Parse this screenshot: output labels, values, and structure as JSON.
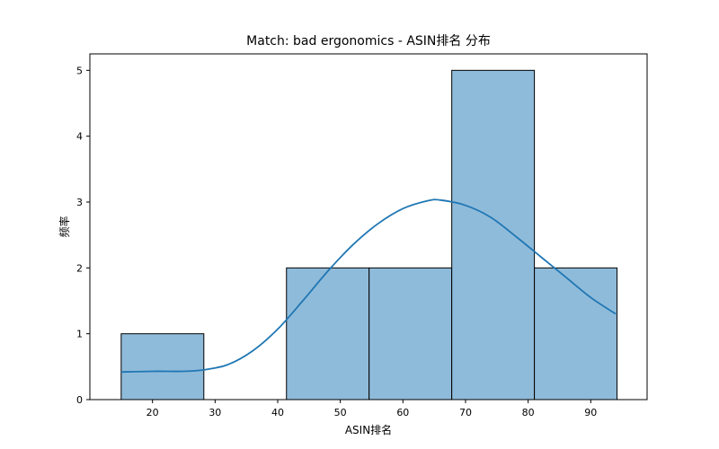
{
  "chart_data": {
    "type": "histogram",
    "title": "Match: bad ergonomics - ASIN排名 分布",
    "xlabel": "ASIN排名",
    "ylabel": "频率",
    "xlim": [
      10,
      99
    ],
    "ylim": [
      0,
      5.25
    ],
    "x_ticks": [
      20,
      30,
      40,
      50,
      60,
      70,
      80,
      90
    ],
    "y_ticks": [
      0,
      1,
      2,
      3,
      4,
      5
    ],
    "bins": [
      {
        "start": 15,
        "end": 28.2,
        "count": 1
      },
      {
        "start": 28.2,
        "end": 41.4,
        "count": 0
      },
      {
        "start": 41.4,
        "end": 54.6,
        "count": 2
      },
      {
        "start": 54.6,
        "end": 67.8,
        "count": 2
      },
      {
        "start": 67.8,
        "end": 81.0,
        "count": 5
      },
      {
        "start": 81.0,
        "end": 94.2,
        "count": 2
      }
    ],
    "kde": {
      "x": [
        15,
        20,
        25,
        28,
        32,
        36,
        40,
        44,
        48,
        52,
        56,
        60,
        64,
        66,
        70,
        74,
        78,
        82,
        86,
        90,
        94
      ],
      "y": [
        0.42,
        0.43,
        0.43,
        0.45,
        0.53,
        0.74,
        1.07,
        1.5,
        1.95,
        2.35,
        2.67,
        2.9,
        3.02,
        3.03,
        2.95,
        2.77,
        2.48,
        2.17,
        1.86,
        1.55,
        1.3
      ]
    },
    "colors": {
      "bar_fill": "#8fbbda",
      "bar_edge": "#000000",
      "kde_line": "#1f77b4",
      "axes": "#000000"
    },
    "grid": false,
    "legend": "none"
  }
}
